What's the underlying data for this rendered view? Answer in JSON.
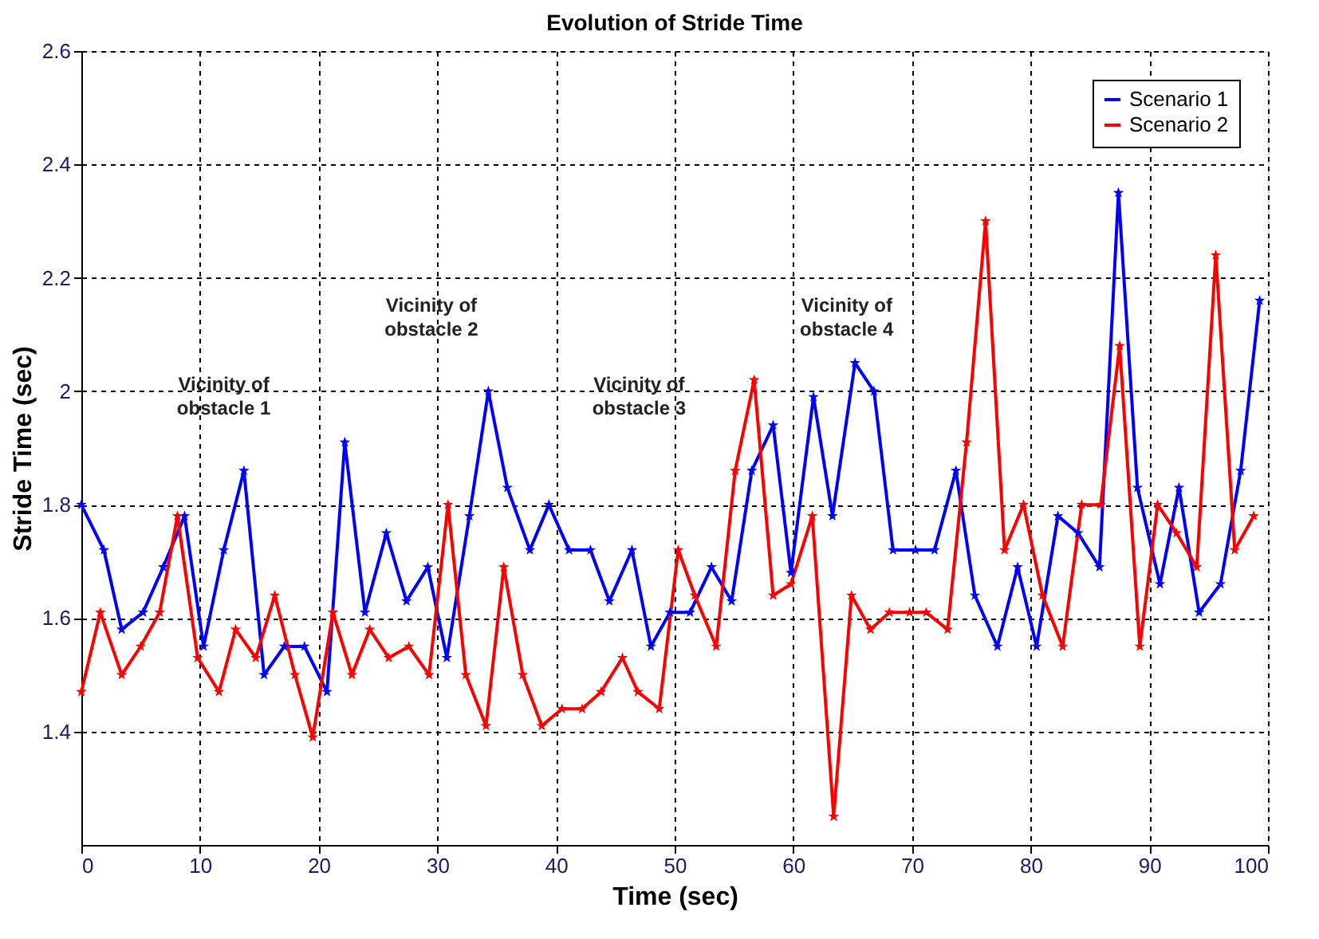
{
  "chart_data": {
    "type": "line",
    "title": "Evolution of Stride Time",
    "xlabel": "Time (sec)",
    "ylabel": "Stride Time (sec)",
    "xlim": [
      0,
      100
    ],
    "xticks": [
      0,
      10,
      20,
      30,
      40,
      50,
      60,
      70,
      80,
      90,
      100
    ],
    "ylim": [
      1.2,
      2.6
    ],
    "yticks": [
      1.4,
      1.6,
      1.8,
      2,
      2.2,
      2.4,
      2.6
    ],
    "grid": true,
    "legend": "top right",
    "marker": "star",
    "line_style": "solid",
    "series": [
      {
        "name": "Scenario 1",
        "color": "#0000ff",
        "x": [
          0,
          1.9,
          3.4,
          5.2,
          6.9,
          8.7,
          10.3,
          12.0,
          13.7,
          15.4,
          17.1,
          18.8,
          20.7,
          22.2,
          23.9,
          25.7,
          27.4,
          29.2,
          30.8,
          32.7,
          34.3,
          35.9,
          37.8,
          39.4,
          41.1,
          42.9,
          44.5,
          46.4,
          48.0,
          49.6,
          51.3,
          53.1,
          54.8,
          56.5,
          58.3,
          59.8,
          61.7,
          63.3,
          65.2,
          66.8,
          68.4,
          70.3,
          71.9,
          73.7,
          75.3,
          77.2,
          78.9,
          80.5,
          82.3,
          84.0,
          85.8,
          87.4,
          89.0,
          90.9,
          92.5,
          94.2,
          96.0,
          97.7,
          99.3
        ],
        "values": [
          1.8,
          1.72,
          1.58,
          1.61,
          1.69,
          1.78,
          1.55,
          1.72,
          1.86,
          1.5,
          1.55,
          1.55,
          1.47,
          1.91,
          1.61,
          1.75,
          1.63,
          1.69,
          1.53,
          1.78,
          2.0,
          1.83,
          1.72,
          1.8,
          1.72,
          1.72,
          1.63,
          1.72,
          1.55,
          1.61,
          1.61,
          1.69,
          1.63,
          1.86,
          1.94,
          1.68,
          1.99,
          1.78,
          2.05,
          2.0,
          1.72,
          1.72,
          1.72,
          1.86,
          1.64,
          1.55,
          1.69,
          1.55,
          1.78,
          1.75,
          1.69,
          2.35,
          1.83,
          1.66,
          1.83,
          1.61,
          1.66,
          1.86,
          2.16
        ]
      },
      {
        "name": "Scenario 2",
        "color": "#ff0000",
        "x": [
          0,
          1.6,
          3.4,
          5.0,
          6.6,
          8.1,
          9.8,
          11.6,
          13.0,
          14.7,
          16.3,
          18.0,
          19.5,
          21.2,
          22.8,
          24.3,
          25.9,
          27.6,
          29.3,
          30.9,
          32.4,
          34.1,
          35.6,
          37.2,
          38.8,
          40.5,
          42.2,
          43.8,
          45.6,
          46.9,
          48.7,
          50.3,
          51.7,
          53.5,
          55.1,
          56.7,
          58.3,
          59.8,
          61.6,
          63.4,
          64.9,
          66.5,
          68.1,
          69.8,
          71.2,
          73.0,
          74.6,
          76.2,
          77.8,
          79.4,
          81.0,
          82.7,
          84.3,
          85.9,
          87.5,
          89.2,
          90.7,
          92.3,
          94.0,
          95.6,
          97.2,
          98.8
        ],
        "values": [
          1.47,
          1.61,
          1.5,
          1.55,
          1.61,
          1.78,
          1.53,
          1.47,
          1.58,
          1.53,
          1.64,
          1.5,
          1.39,
          1.61,
          1.5,
          1.58,
          1.53,
          1.55,
          1.5,
          1.8,
          1.5,
          1.41,
          1.69,
          1.5,
          1.41,
          1.44,
          1.44,
          1.47,
          1.53,
          1.47,
          1.44,
          1.72,
          1.64,
          1.55,
          1.86,
          2.02,
          1.64,
          1.66,
          1.78,
          1.25,
          1.64,
          1.58,
          1.61,
          1.61,
          1.61,
          1.58,
          1.91,
          2.3,
          1.72,
          1.8,
          1.64,
          1.55,
          1.8,
          1.8,
          2.08,
          1.55,
          1.8,
          1.75,
          1.69,
          2.24,
          1.72,
          1.78
        ]
      }
    ],
    "annotations": [
      "Vicinity of\nobstacle 1",
      "Vicinity of\nobstacle 2",
      "Vicinity of\nobstacle 3",
      "Vicinity of\nobstacle 4"
    ]
  }
}
